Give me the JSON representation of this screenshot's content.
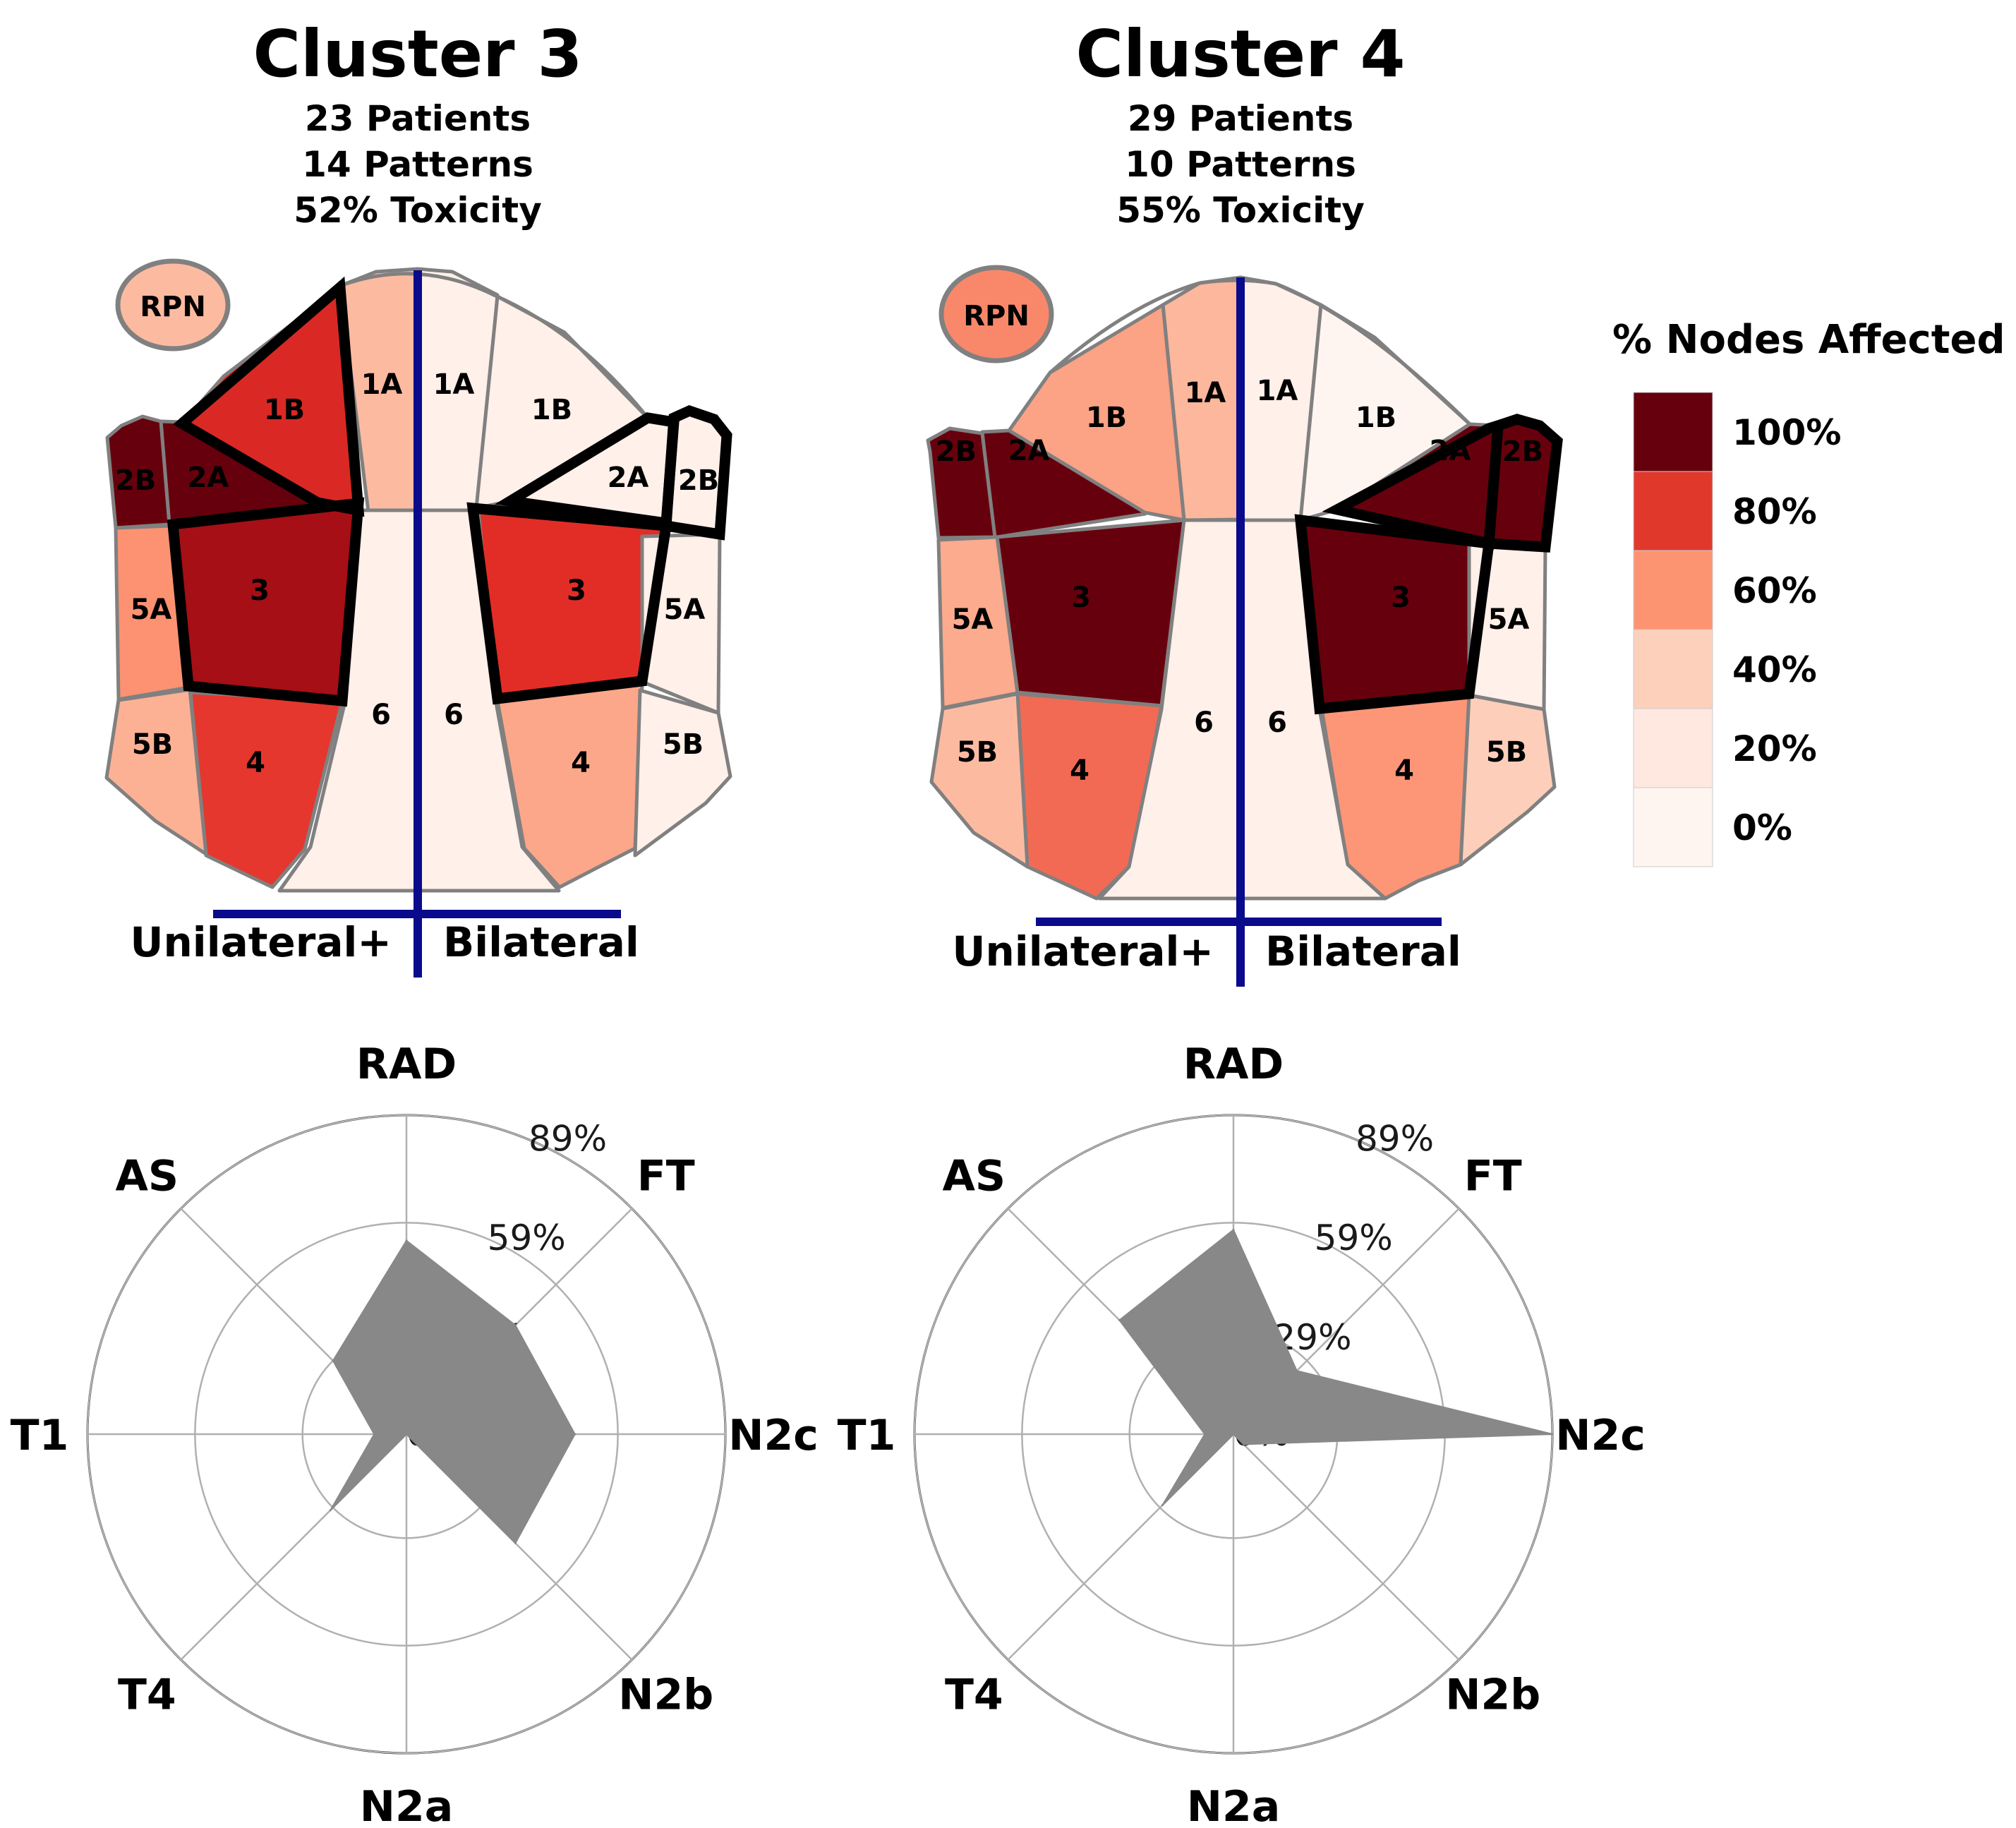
{
  "chart_data": [
    {
      "type": "nodal-map",
      "title": "Cluster 3",
      "stats": [
        "23 Patients",
        "14 Patterns",
        "52% Toxicity"
      ],
      "side_labels": [
        "Unilateral+",
        "Bilateral"
      ],
      "rpn": {
        "label": "RPN",
        "value": 40
      },
      "regions": [
        {
          "label": "1A",
          "side": "left",
          "value": 40
        },
        {
          "label": "1B",
          "side": "left",
          "value": 82,
          "highlighted": true
        },
        {
          "label": "2A",
          "side": "left",
          "value": 100
        },
        {
          "label": "2B",
          "side": "left",
          "value": 100
        },
        {
          "label": "3",
          "side": "left",
          "value": 95,
          "highlighted": true
        },
        {
          "label": "4",
          "side": "left",
          "value": 78
        },
        {
          "label": "5A",
          "side": "left",
          "value": 60
        },
        {
          "label": "5B",
          "side": "left",
          "value": 45
        },
        {
          "label": "6",
          "side": "left",
          "value": 5
        },
        {
          "label": "1A",
          "side": "right",
          "value": 5
        },
        {
          "label": "1B",
          "side": "right",
          "value": 5
        },
        {
          "label": "2A",
          "side": "right",
          "value": 5,
          "highlighted": true
        },
        {
          "label": "2B",
          "side": "right",
          "value": 5,
          "highlighted": true
        },
        {
          "label": "3",
          "side": "right",
          "value": 80,
          "highlighted": true
        },
        {
          "label": "4",
          "side": "right",
          "value": 50
        },
        {
          "label": "5A",
          "side": "right",
          "value": 5
        },
        {
          "label": "5B",
          "side": "right",
          "value": 5
        },
        {
          "label": "6",
          "side": "right",
          "value": 5
        }
      ]
    },
    {
      "type": "nodal-map",
      "title": "Cluster 4",
      "stats": [
        "29 Patients",
        "10 Patterns",
        "55% Toxicity"
      ],
      "side_labels": [
        "Unilateral+",
        "Bilateral"
      ],
      "rpn": {
        "label": "RPN",
        "value": 62
      },
      "regions": [
        {
          "label": "1A",
          "side": "left",
          "value": 42
        },
        {
          "label": "1B",
          "side": "left",
          "value": 52
        },
        {
          "label": "2A",
          "side": "left",
          "value": 100
        },
        {
          "label": "2B",
          "side": "left",
          "value": 100
        },
        {
          "label": "3",
          "side": "left",
          "value": 100
        },
        {
          "label": "4",
          "side": "left",
          "value": 68
        },
        {
          "label": "5A",
          "side": "left",
          "value": 48
        },
        {
          "label": "5B",
          "side": "left",
          "value": 40
        },
        {
          "label": "6",
          "side": "left",
          "value": 5
        },
        {
          "label": "1A",
          "side": "right",
          "value": 5
        },
        {
          "label": "1B",
          "side": "right",
          "value": 0
        },
        {
          "label": "2A",
          "side": "right",
          "value": 100,
          "highlighted": true
        },
        {
          "label": "2B",
          "side": "right",
          "value": 100,
          "highlighted": true
        },
        {
          "label": "3",
          "side": "right",
          "value": 100,
          "highlighted": true
        },
        {
          "label": "4",
          "side": "right",
          "value": 58
        },
        {
          "label": "5A",
          "side": "right",
          "value": 5
        },
        {
          "label": "5B",
          "side": "right",
          "value": 30
        },
        {
          "label": "6",
          "side": "right",
          "value": 5
        }
      ]
    },
    {
      "type": "radar",
      "axes": [
        "RAD",
        "FT",
        "N2c",
        "N2b",
        "N2a",
        "T4",
        "T1",
        "AS"
      ],
      "values": [
        54,
        43,
        47,
        43,
        0,
        30,
        9,
        29
      ],
      "rticks": [
        "0%",
        "29%",
        "59%",
        "89%"
      ],
      "rtick_values": [
        0,
        29,
        59,
        89
      ],
      "rmax": 89
    },
    {
      "type": "radar",
      "axes": [
        "RAD",
        "FT",
        "N2c",
        "N2b",
        "N2a",
        "T4",
        "T1",
        "AS"
      ],
      "values": [
        57,
        25,
        89,
        4,
        0,
        28,
        8,
        45
      ],
      "rticks": [
        "0%",
        "29%",
        "59%",
        "89%"
      ],
      "rtick_values": [
        0,
        29,
        59,
        89
      ],
      "rmax": 89
    }
  ],
  "legend": {
    "title": "% Nodes Affected",
    "ticks": [
      "100%",
      "80%",
      "60%",
      "40%",
      "20%",
      "0%"
    ],
    "colors": [
      "#67000d",
      "#e0392b",
      "#fc9472",
      "#fdd0bc",
      "#fee8df",
      "#fff5f0"
    ]
  }
}
